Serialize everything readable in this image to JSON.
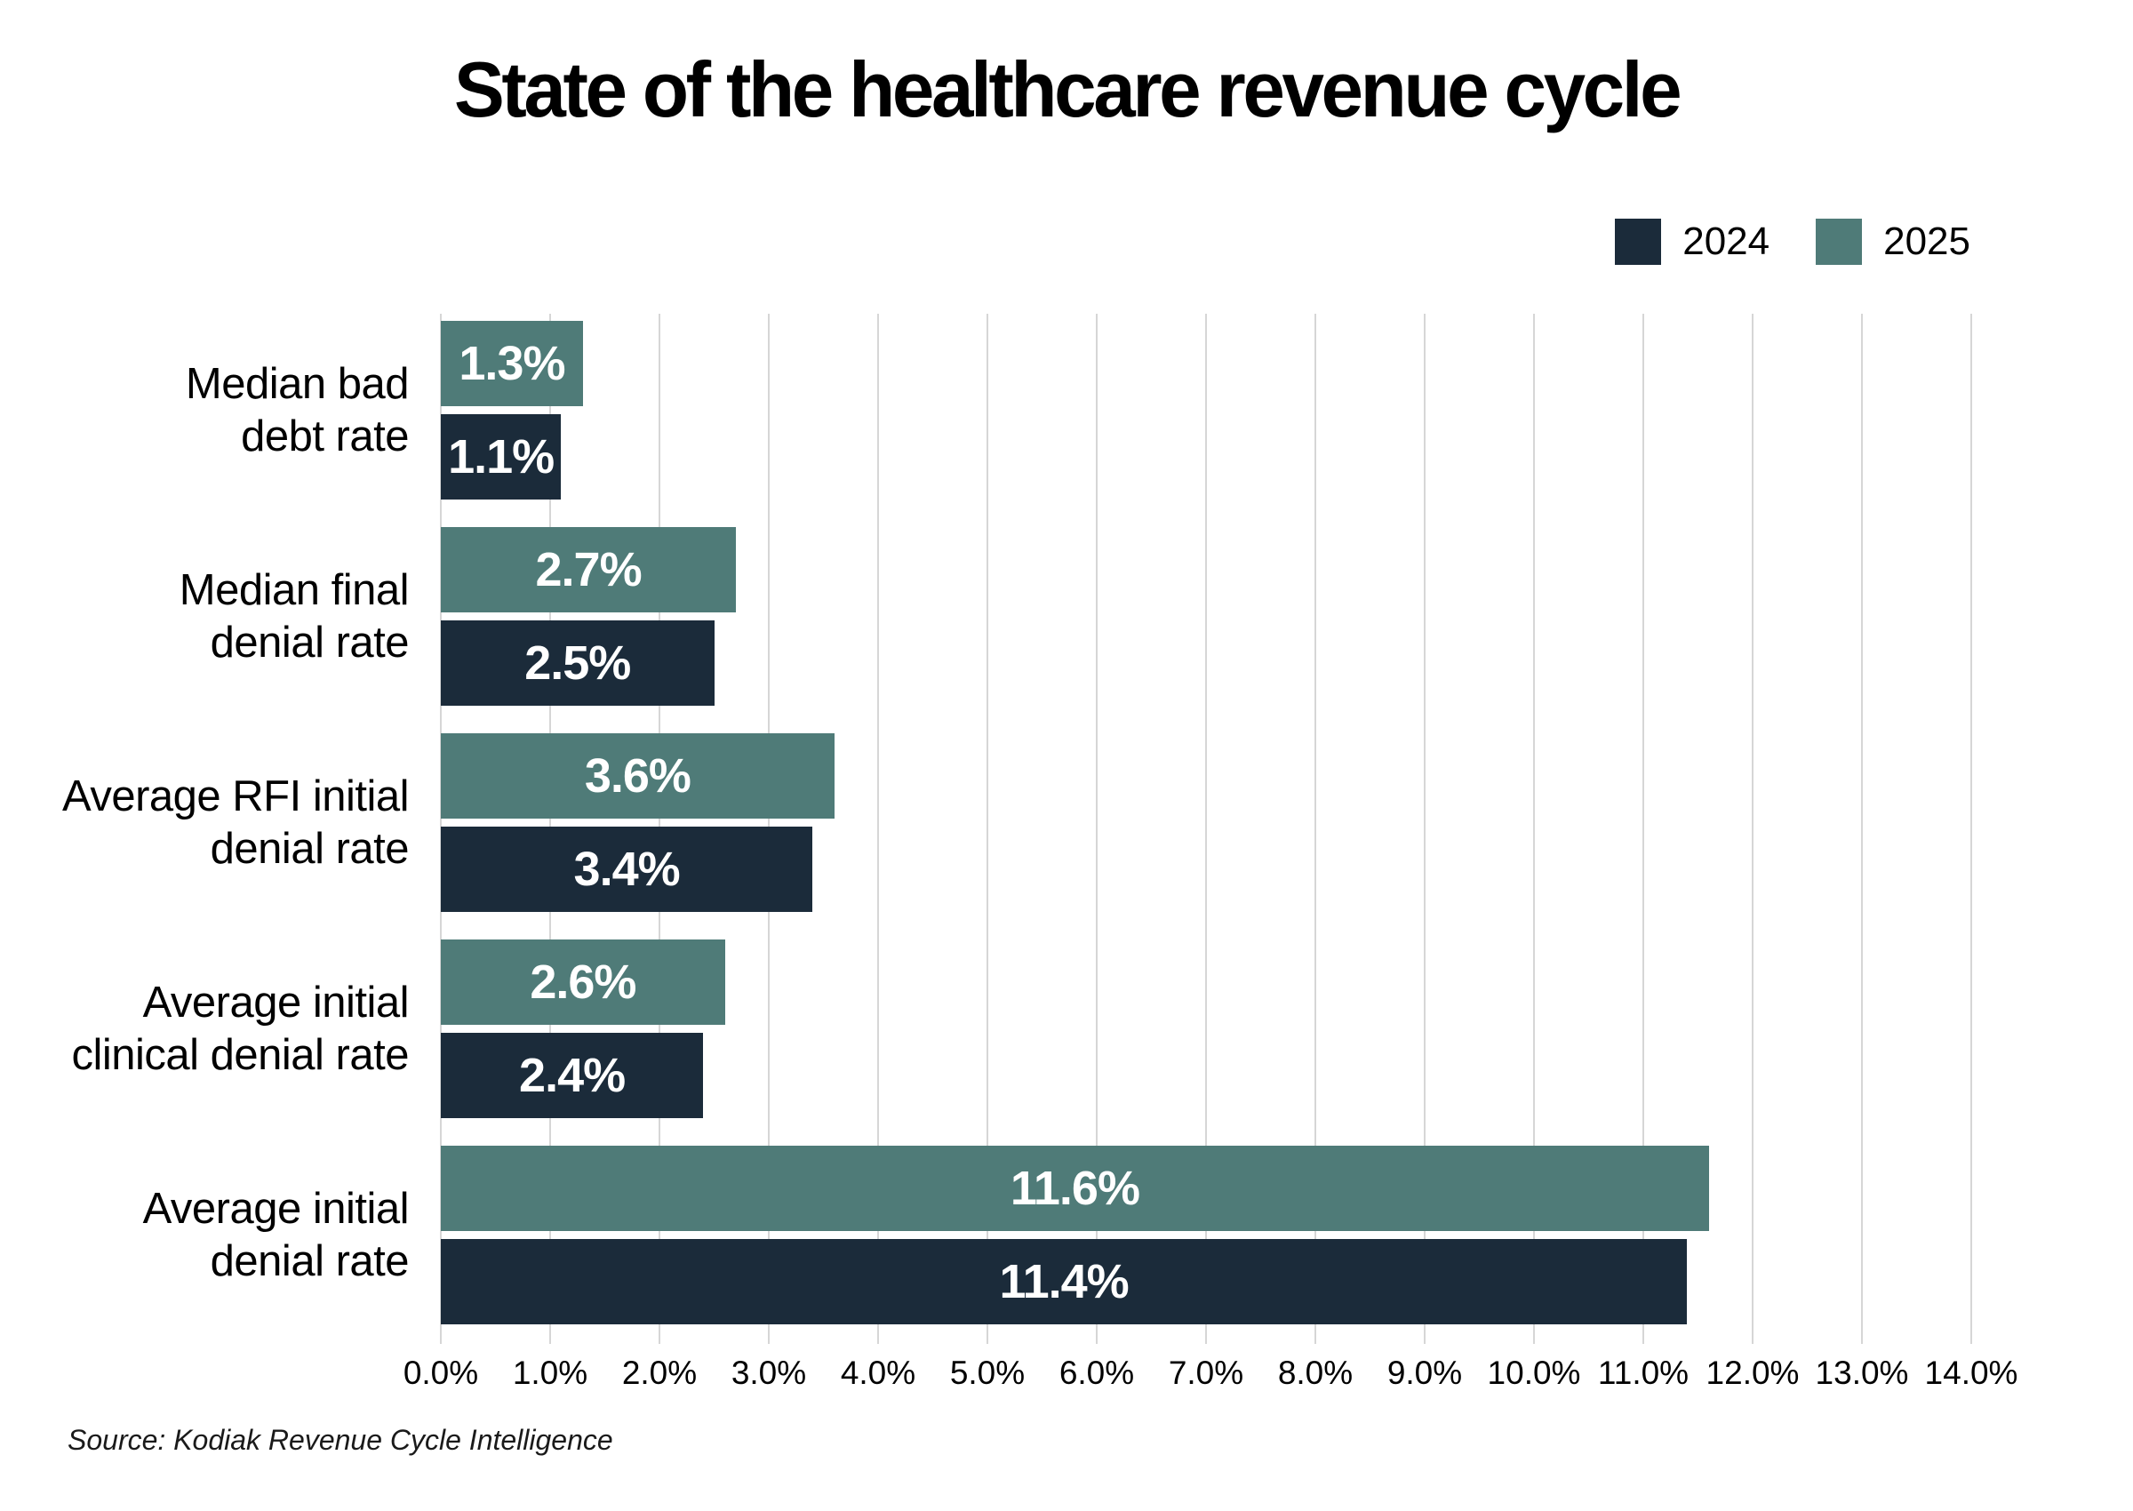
{
  "title": "State of the healthcare revenue cycle",
  "source": "Source: Kodiak Revenue Cycle Intelligence",
  "colors": {
    "series_2024": "#1b2b3a",
    "series_2025": "#4f7b78",
    "gridline": "#d6d6d6",
    "value_text": "#ffffff",
    "background": "#ffffff"
  },
  "legend": [
    {
      "label": "2024",
      "color": "#1b2b3a"
    },
    {
      "label": "2025",
      "color": "#4f7b78"
    }
  ],
  "chart_data": {
    "type": "bar",
    "orientation": "horizontal",
    "title": "State of the healthcare revenue cycle",
    "xlabel": "",
    "ylabel": "",
    "xlim": [
      0,
      14
    ],
    "grid": "vertical",
    "legend_position": "top-right",
    "categories": [
      {
        "label": "Median bad debt rate",
        "lines": [
          "Median bad",
          "debt rate"
        ]
      },
      {
        "label": "Median final denial rate",
        "lines": [
          "Median final",
          "denial rate"
        ]
      },
      {
        "label": "Average RFI initial denial rate",
        "lines": [
          "Average RFI initial",
          "denial rate"
        ]
      },
      {
        "label": "Average initial clinical denial rate",
        "lines": [
          "Average initial",
          "clinical denial rate"
        ]
      },
      {
        "label": "Average initial denial rate",
        "lines": [
          "Average initial",
          "denial rate"
        ]
      }
    ],
    "series": [
      {
        "name": "2025",
        "color": "#4f7b78",
        "values": [
          1.3,
          2.7,
          3.6,
          2.6,
          11.6
        ],
        "labels": [
          "1.3%",
          "2.7%",
          "3.6%",
          "2.6%",
          "11.6%"
        ]
      },
      {
        "name": "2024",
        "color": "#1b2b3a",
        "values": [
          1.1,
          2.5,
          3.4,
          2.4,
          11.4
        ],
        "labels": [
          "1.1%",
          "2.5%",
          "3.4%",
          "2.4%",
          "11.4%"
        ]
      }
    ],
    "bar_render_order": [
      "2025",
      "2024"
    ],
    "x_axis": {
      "min": 0,
      "max": 14,
      "step": 1,
      "ticks": [
        "0.0%",
        "1.0%",
        "2.0%",
        "3.0%",
        "4.0%",
        "5.0%",
        "6.0%",
        "7.0%",
        "8.0%",
        "9.0%",
        "10.0%",
        "11.0%",
        "12.0%",
        "13.0%",
        "14.0%"
      ]
    }
  }
}
